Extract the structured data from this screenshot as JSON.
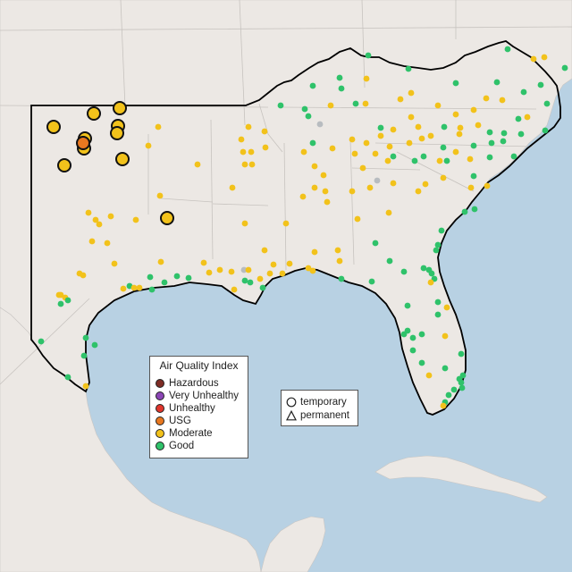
{
  "legend": {
    "title": "Air Quality Index",
    "items": [
      {
        "label": "Hazardous",
        "color": "#7e2c25"
      },
      {
        "label": "Very Unhealthy",
        "color": "#8b45b5"
      },
      {
        "label": "Unhealthy",
        "color": "#e0352c"
      },
      {
        "label": "USG",
        "color": "#e87820"
      },
      {
        "label": "Moderate",
        "color": "#f2c21b"
      },
      {
        "label": "Good",
        "color": "#2fc26a"
      }
    ]
  },
  "shape_legend": {
    "items": [
      {
        "label": "temporary",
        "shape": "circle"
      },
      {
        "label": "permanent",
        "shape": "triangle"
      }
    ]
  },
  "colors": {
    "water": "#b8d1e3",
    "land": "#ece8e4",
    "region_outline": "#000000",
    "no_data": "#b8bcc0"
  }
}
